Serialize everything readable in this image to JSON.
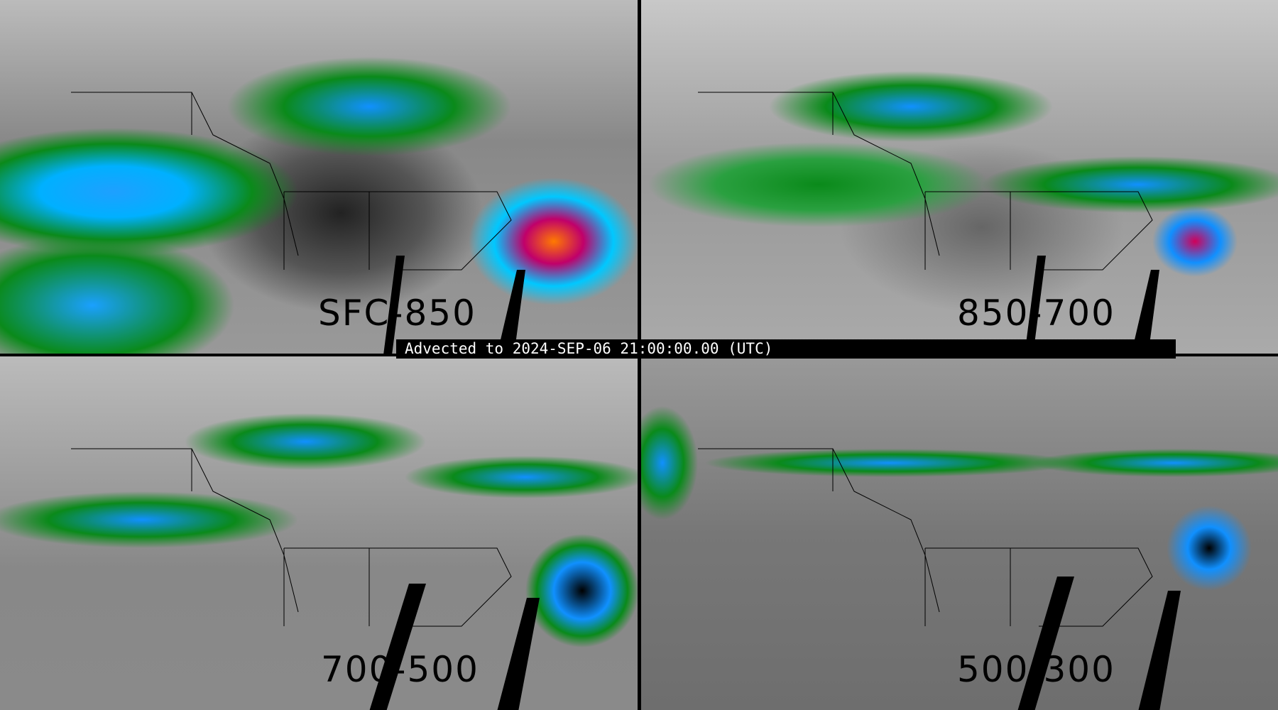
{
  "timestamp_banner": "Advected to 2024-SEP-06 21:00:00.00 (UTC)",
  "panels": [
    {
      "layer_label": "SFC-850"
    },
    {
      "layer_label": "850-700"
    },
    {
      "layer_label": "700-500"
    },
    {
      "layer_label": "500-300"
    }
  ],
  "colors": {
    "low": "#0a8a1a",
    "mid": "#1090ff",
    "high": "#00c8ff",
    "extreme": "#c0006a",
    "peak": "#ff7a00",
    "background": "#888888"
  }
}
